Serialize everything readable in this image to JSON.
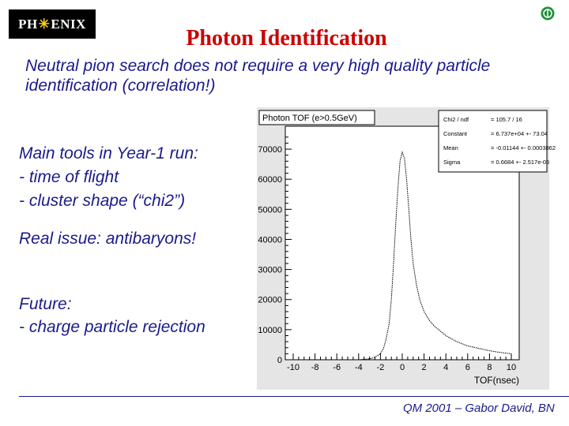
{
  "header": {
    "logo_text_left": "PH",
    "logo_text_right": "ENIX",
    "title": "Photon Identification"
  },
  "subtitle": "Neutral pion search does not require a very high quality particle identification (correlation!)",
  "left_text": {
    "tools_heading": "Main tools in Year-1 run:",
    "tool_1": "- time of flight",
    "tool_2": "- cluster shape (“chi2”)",
    "issue": "Real issue: antibaryons!",
    "future_heading": "Future:",
    "future_1": "- charge particle rejection"
  },
  "footer": "QM 2001 – Gabor David, BN",
  "colors": {
    "title": "#cc0000",
    "body_text": "#1a1a8c",
    "plot_bg": "#e5e5e5"
  },
  "chart_data": {
    "type": "line",
    "title": "Photon TOF (e>0.5GeV)",
    "xlabel": "TOF(nsec)",
    "ylabel": "",
    "xlim": [
      -10,
      10
    ],
    "ylim": [
      0,
      75000
    ],
    "xticks": [
      "-10",
      "-8",
      "-6",
      "-4",
      "-2",
      "0",
      "2",
      "4",
      "6",
      "8",
      "10"
    ],
    "yticks": [
      "0",
      "10000",
      "20000",
      "30000",
      "40000",
      "50000",
      "60000",
      "70000"
    ],
    "stats": [
      {
        "label": "Chi2 / ndf",
        "value": "= 105.7 / 16"
      },
      {
        "label": "Constant",
        "value": "= 6.737e+04 +- 73.04"
      },
      {
        "label": "Mean",
        "value": "= -0.01144 +- 0.0003862"
      },
      {
        "label": "Sigma",
        "value": "= 0.6684 +- 2.517e-05"
      }
    ],
    "series": [
      {
        "x": [
          -10,
          -4,
          -3,
          -2.5,
          -2,
          -1.7,
          -1.5,
          -1.2,
          -1,
          -0.8,
          -0.6,
          -0.4,
          -0.2,
          0,
          0.2,
          0.4,
          0.6,
          0.8,
          1,
          1.3,
          1.6,
          2,
          2.5,
          3,
          3.5,
          4,
          5,
          6,
          7,
          8,
          9,
          10
        ],
        "y": [
          0,
          0,
          300,
          800,
          2000,
          4000,
          6500,
          12000,
          20000,
          32000,
          45000,
          57000,
          66000,
          69000,
          67000,
          60000,
          50000,
          40000,
          32000,
          25000,
          20000,
          16000,
          13000,
          11000,
          9500,
          8000,
          6000,
          4600,
          3800,
          3000,
          2400,
          2000
        ]
      }
    ]
  }
}
